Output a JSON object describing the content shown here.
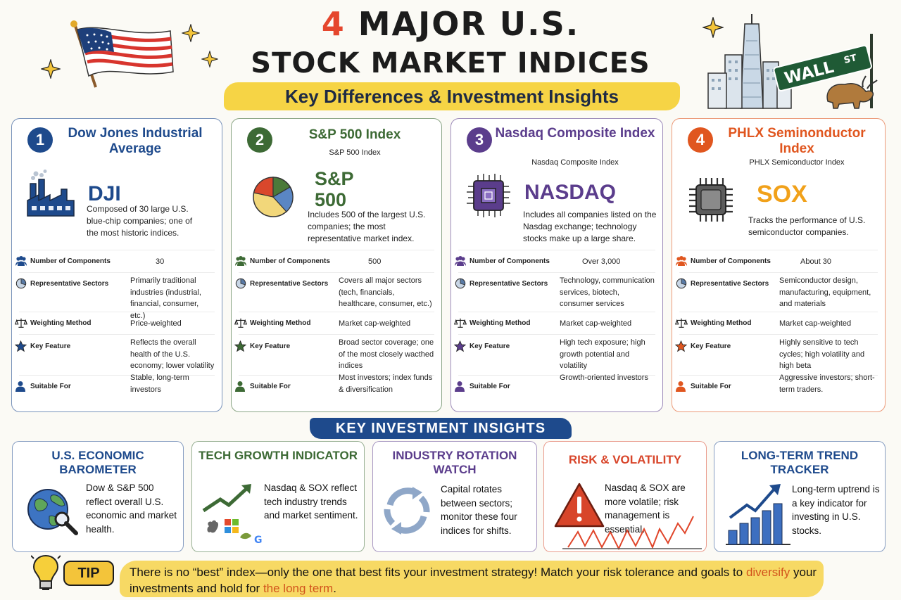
{
  "header": {
    "title_number": "4",
    "title_rest": " MAJOR U.S.",
    "title_line2": "STOCK MARKET INDICES",
    "subtitle": "Key Differences & Investment Insights",
    "sign_text": "WALL",
    "sign_suffix": "ST"
  },
  "colors": {
    "dow": "#1e4a8c",
    "sp": "#3d6a35",
    "nasdaq": "#5b3d8c",
    "sox": "#e0561f",
    "accent_yellow": "#f6d445",
    "title_red": "#e5462d"
  },
  "row_labels": [
    "Number of Components",
    "Representative Sectors",
    "Weighting Method",
    "Key Feature",
    "Suitable For"
  ],
  "indices": [
    {
      "number": "1",
      "name": "Dow Jones Industrial Average",
      "subname": "",
      "ticker": "DJI",
      "description": "Composed of 30 large U.S. blue-chip companies; one of the most historic indices.",
      "components": "30",
      "sectors": "Primarily traditional industries (industrial, financial, consumer, etc.)",
      "weighting": "Price-weighted",
      "feature": "Reflects the overall health of the U.S. economy; lower volatility",
      "suitable": "Stable, long-term investors",
      "icon": "factory-icon"
    },
    {
      "number": "2",
      "name": "S&P 500 Index",
      "subname": "S&P 500 Index",
      "ticker": "S&P 500",
      "description": "Includes 500 of the largest U.S. companies; the most representative market index.",
      "components": "500",
      "sectors": "Covers all major sectors (tech, financials, healthcare, consumer, etc.)",
      "weighting": "Market cap-weighted",
      "feature": "Broad sector coverage; one of the most closely wacthed indices",
      "suitable": "Most investors; index funds & diversification",
      "icon": "pie-chart-icon"
    },
    {
      "number": "3",
      "name": "Nasdaq Composite Index",
      "subname": "Nasdaq Composite Index",
      "ticker": "NASDAQ",
      "description": "Includes all companies listed on the Nasdag exchange; technology stocks make up a large share.",
      "components": "Over 3,000",
      "sectors": "Technology, communication services, biotech, consumer services",
      "weighting": "Market cap-weighted",
      "feature": "High tech exposure; high growth potential and volatility",
      "suitable": "Growth-oriented investors",
      "icon": "circuit-chip-icon"
    },
    {
      "number": "4",
      "name": "PHLX Seminonductor Index",
      "subname": "PHLX Semiconductor Index",
      "ticker": "SOX",
      "description": "Tracks the performance of U.S. semiconductor companies.",
      "components": "About 30",
      "sectors": "Semiconductor design, manufacturing, equipment, and materials",
      "weighting": "Market cap-weighted",
      "feature": "Highly sensitive to tech cycles; high volatility and high beta",
      "suitable": "Aggressive investors; short-term traders.",
      "icon": "chip-icon"
    }
  ],
  "insights_title": "KEY INVESTMENT INSIGHTS",
  "insights": [
    {
      "title": "U.S. ECONOMIC BAROMETER",
      "text": "Dow & S&P 500 reflect overall U.S. economic and market health.",
      "color": "#1e4a8c",
      "icon": "globe-magnifier-icon"
    },
    {
      "title": "TECH GROWTH INDICATOR",
      "text": "Nasdaq & SOX reflect tech industry trends and market sentiment.",
      "color": "#3d6a35",
      "icon": "growth-arrow-icon"
    },
    {
      "title": "INDUSTRY ROTATION WATCH",
      "text": "Capital rotates between sectors; monitor these four indices for shifts.",
      "color": "#5b3d8c",
      "icon": "rotation-arrows-icon"
    },
    {
      "title": "RISK & VOLATILITY",
      "text": "Nasdaq & SOX are more volatile; risk management is essential.",
      "color": "#d8452a",
      "icon": "warning-icon"
    },
    {
      "title": "LONG-TERM TREND TRACKER",
      "text": "Long-term uptrend is a key indicator for investing in U.S. stocks.",
      "color": "#1e4a8c",
      "icon": "bar-chart-icon"
    }
  ],
  "tip": {
    "badge": "TIP",
    "part1": "There is no “best” index—only the one that best fits your investment strategy! Match your risk tolerance and goals to ",
    "highlight1": "diversify",
    "part2": " your investments and hold for ",
    "highlight2": "the long term",
    "part3": "."
  }
}
